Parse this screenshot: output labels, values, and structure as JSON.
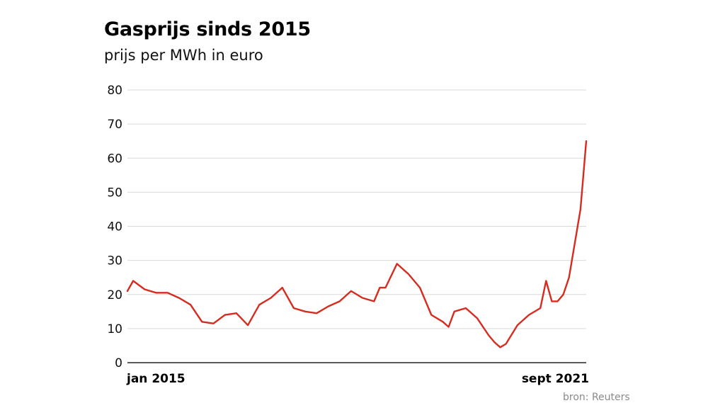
{
  "chart_data": {
    "type": "line",
    "title": "Gasprijs sinds 2015",
    "subtitle": "prijs per MWh in euro",
    "source": "bron: Reuters",
    "xlabel": "",
    "ylabel": "",
    "x_tick_labels": [
      "jan 2015",
      "sept 2021"
    ],
    "x_range": [
      "2015-01",
      "2021-09"
    ],
    "ylim": [
      0,
      80
    ],
    "y_ticks": [
      0,
      10,
      20,
      30,
      40,
      50,
      60,
      70,
      80
    ],
    "grid": true,
    "legend": "none",
    "line_color": "#d62c1f",
    "series": [
      {
        "x": [
          "2015-01",
          "2015-02",
          "2015-04",
          "2015-06",
          "2015-08",
          "2015-10",
          "2015-12",
          "2016-02",
          "2016-04",
          "2016-06",
          "2016-08",
          "2016-10",
          "2016-12",
          "2017-02",
          "2017-04",
          "2017-06",
          "2017-08",
          "2017-10",
          "2017-12",
          "2018-02",
          "2018-04",
          "2018-06",
          "2018-08",
          "2018-09",
          "2018-10",
          "2018-12",
          "2019-02",
          "2019-04",
          "2019-06",
          "2019-08",
          "2019-09",
          "2019-10",
          "2019-12",
          "2020-02",
          "2020-04",
          "2020-05",
          "2020-06",
          "2020-07",
          "2020-09",
          "2020-11",
          "2021-01",
          "2021-02",
          "2021-03",
          "2021-04",
          "2021-05",
          "2021-06",
          "2021-07",
          "2021-08",
          "2021-09"
        ],
        "values": [
          21,
          24,
          21.5,
          20.5,
          20.5,
          19,
          17,
          12,
          11.5,
          14,
          14.5,
          11,
          17,
          19,
          22,
          16,
          15,
          14.5,
          16.5,
          18,
          21,
          19,
          18,
          22,
          22,
          29,
          26,
          22,
          14,
          12,
          10.5,
          15,
          16,
          13,
          8,
          6,
          4.5,
          5.5,
          11,
          14,
          16,
          24,
          18,
          18,
          20,
          25,
          35,
          45,
          65
        ]
      }
    ]
  }
}
